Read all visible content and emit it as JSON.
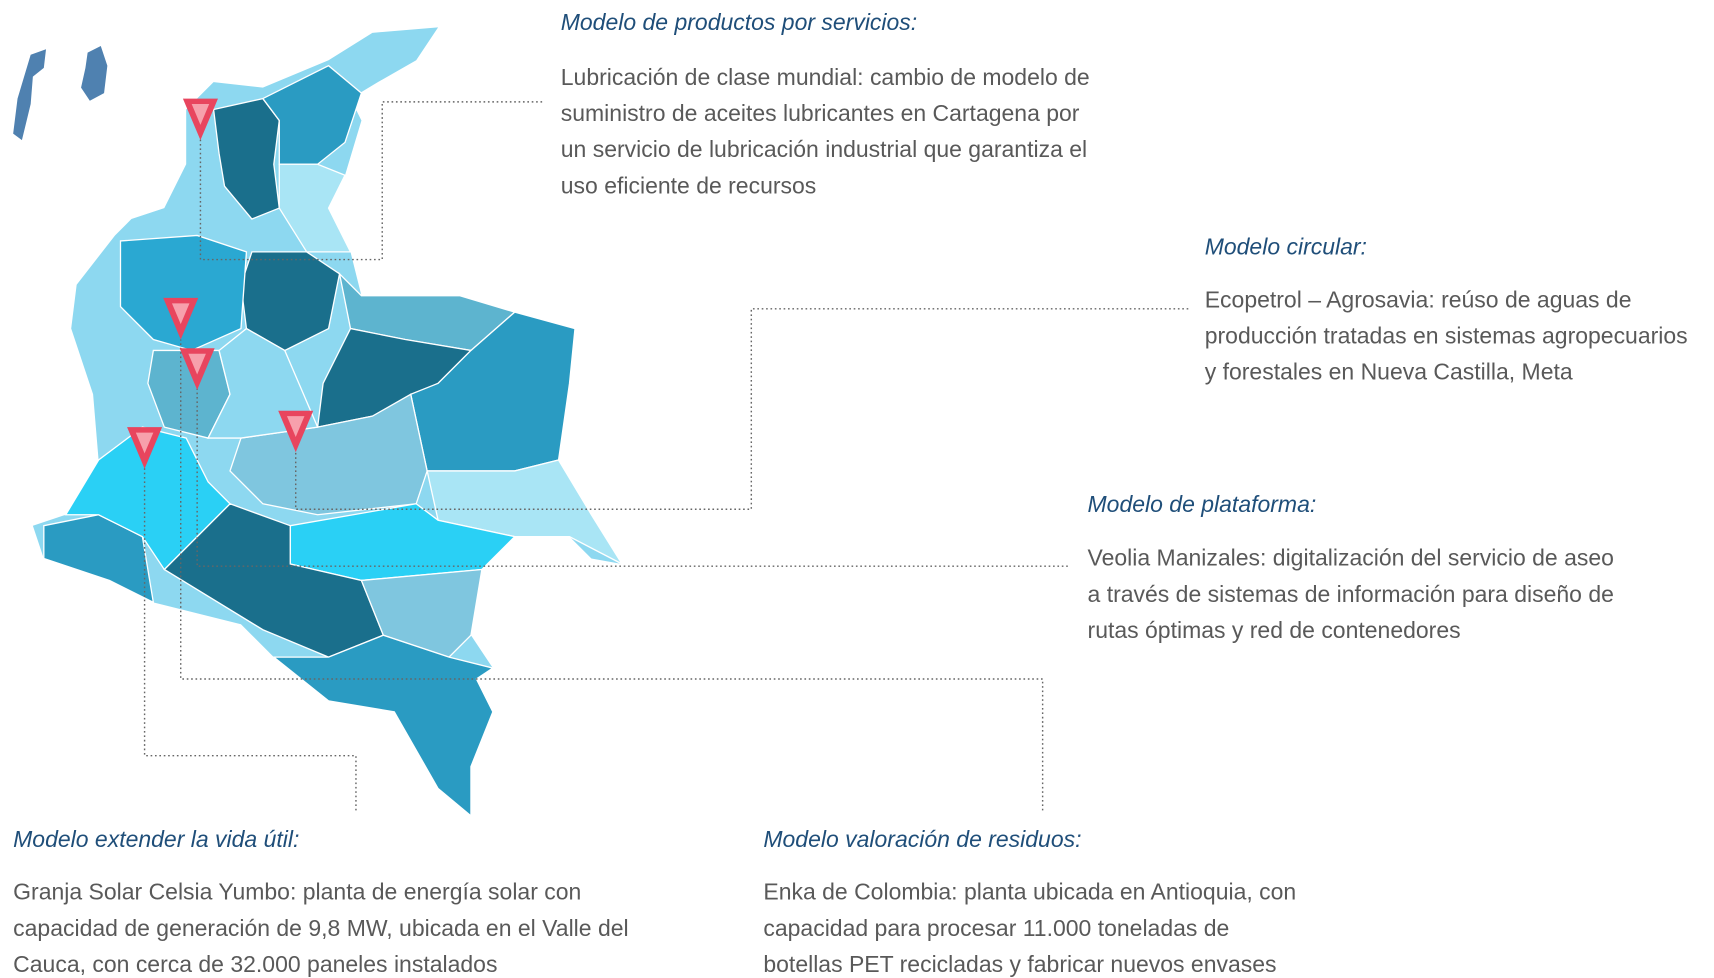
{
  "callouts": [
    {
      "title": "Modelo de productos por servicios:",
      "lines": [
        "Lubricación de clase mundial: cambio de modelo de",
        "suministro de aceites  lubricantes en Cartagena por",
        "un servicio de lubricación industrial que garantiza el",
        "uso eficiente de recursos"
      ]
    },
    {
      "title": "Modelo circular:",
      "lines": [
        "Ecopetrol – Agrosavia: reúso de aguas de",
        "producción tratadas en sistemas agropecuarios",
        "y forestales en Nueva Castilla, Meta"
      ]
    },
    {
      "title": "Modelo de plataforma:",
      "lines": [
        "Veolia Manizales: digitalización del servicio de aseo",
        "a través de sistemas de información para diseño de",
        "rutas óptimas y red de contenedores"
      ]
    },
    {
      "title": "Modelo extender la vida útil:",
      "lines": [
        "Granja Solar Celsia Yumbo: planta de energía solar con",
        "capacidad de generación de 9,8 MW, ubicada en el Valle del",
        "Cauca, con cerca de 32.000 paneles instalados"
      ]
    },
    {
      "title": "Modelo valoración de residuos:",
      "lines": [
        "Enka de Colombia: planta ubicada en Antioquia, con",
        "capacidad para procesar 11.000 toneladas de",
        "botellas PET recicladas y fabricar nuevos envases"
      ]
    }
  ]
}
